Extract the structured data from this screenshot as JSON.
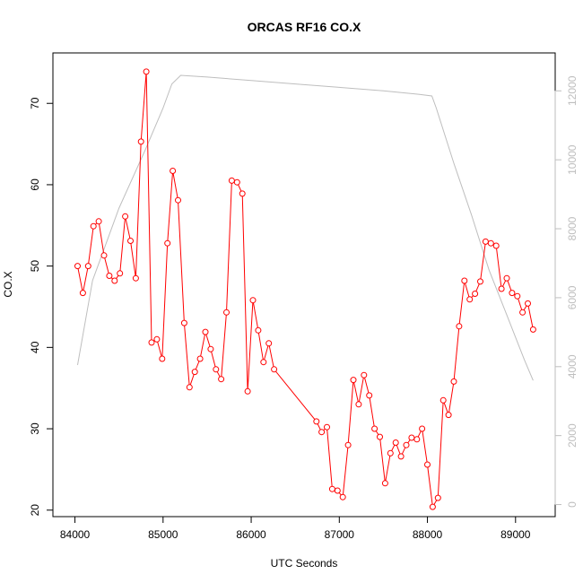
{
  "chart_data": {
    "type": "line",
    "title": "ORCAS RF16 CO.X",
    "xlabel": "UTC Seconds",
    "ylabel": "CO.X",
    "xlim": [
      83750,
      89450
    ],
    "ylim": [
      19.2,
      76.2
    ],
    "y2lim": [
      -350,
      13100
    ],
    "x_ticks": [
      84000,
      85000,
      86000,
      87000,
      88000,
      89000
    ],
    "y_ticks": [
      20,
      30,
      40,
      50,
      60,
      70
    ],
    "y2_ticks": [
      0,
      2000,
      4000,
      6000,
      8000,
      10000,
      12000
    ],
    "colors": {
      "co": "#ff0000",
      "alt": "#bebebe",
      "axis": "#000000",
      "axis2": "#bebebe"
    },
    "series": [
      {
        "axis": "left",
        "points": [
          [
            84030,
            50.0
          ],
          [
            84090,
            46.7
          ],
          [
            84150,
            50.0
          ],
          [
            84210,
            54.9
          ],
          [
            84270,
            55.5
          ],
          [
            84330,
            51.3
          ],
          [
            84390,
            48.8
          ],
          [
            84450,
            48.2
          ],
          [
            84510,
            49.1
          ],
          [
            84570,
            56.1
          ],
          [
            84630,
            53.1
          ],
          [
            84690,
            48.5
          ],
          [
            84750,
            65.3
          ],
          [
            84810,
            73.9
          ],
          [
            84870,
            40.6
          ],
          [
            84930,
            41.0
          ],
          [
            84990,
            38.6
          ],
          [
            85050,
            52.8
          ],
          [
            85110,
            61.7
          ],
          [
            85170,
            58.1
          ],
          [
            85240,
            43.0
          ],
          [
            85300,
            35.1
          ],
          [
            85360,
            37.0
          ],
          [
            85420,
            38.6
          ],
          [
            85480,
            41.9
          ],
          [
            85540,
            39.8
          ],
          [
            85600,
            37.3
          ],
          [
            85660,
            36.1
          ],
          [
            85720,
            44.3
          ],
          [
            85780,
            60.5
          ],
          [
            85840,
            60.3
          ],
          [
            85900,
            58.9
          ],
          [
            85960,
            34.6
          ],
          [
            86020,
            45.8
          ],
          [
            86080,
            42.1
          ],
          [
            86140,
            38.2
          ],
          [
            86200,
            40.5
          ],
          [
            86260,
            37.3
          ],
          [
            86740,
            30.9
          ],
          [
            86800,
            29.6
          ],
          [
            86860,
            30.2
          ],
          [
            86920,
            22.6
          ],
          [
            86980,
            22.4
          ],
          [
            87040,
            21.6
          ],
          [
            87100,
            28.0
          ],
          [
            87160,
            36.0
          ],
          [
            87220,
            33.0
          ],
          [
            87280,
            36.6
          ],
          [
            87340,
            34.1
          ],
          [
            87400,
            30.0
          ],
          [
            87460,
            29.0
          ],
          [
            87520,
            23.3
          ],
          [
            87580,
            27.0
          ],
          [
            87640,
            28.3
          ],
          [
            87700,
            26.6
          ],
          [
            87760,
            28.0
          ],
          [
            87820,
            28.9
          ],
          [
            87880,
            28.7
          ],
          [
            87940,
            30.0
          ],
          [
            88000,
            25.6
          ],
          [
            88060,
            20.4
          ],
          [
            88120,
            21.5
          ],
          [
            88180,
            33.5
          ],
          [
            88240,
            31.7
          ],
          [
            88300,
            35.8
          ],
          [
            88360,
            42.6
          ],
          [
            88420,
            48.2
          ],
          [
            88480,
            45.9
          ],
          [
            88540,
            46.6
          ],
          [
            88600,
            48.1
          ],
          [
            88660,
            53.0
          ],
          [
            88720,
            52.8
          ],
          [
            88780,
            52.5
          ],
          [
            88840,
            47.2
          ],
          [
            88900,
            48.5
          ],
          [
            88960,
            46.7
          ],
          [
            89020,
            46.3
          ],
          [
            89080,
            44.3
          ],
          [
            89140,
            45.4
          ],
          [
            89200,
            42.2
          ]
        ]
      },
      {
        "axis": "right",
        "points": [
          [
            84030,
            4050
          ],
          [
            84200,
            6500
          ],
          [
            84500,
            8600
          ],
          [
            84800,
            10300
          ],
          [
            85000,
            11500
          ],
          [
            85100,
            12200
          ],
          [
            85200,
            12450
          ],
          [
            85500,
            12400
          ],
          [
            86000,
            12300
          ],
          [
            86500,
            12200
          ],
          [
            87000,
            12100
          ],
          [
            87500,
            12000
          ],
          [
            87900,
            11900
          ],
          [
            88050,
            11850
          ],
          [
            88100,
            11500
          ],
          [
            88300,
            9900
          ],
          [
            88500,
            8400
          ],
          [
            88700,
            6800
          ],
          [
            88900,
            5500
          ],
          [
            89100,
            4200
          ],
          [
            89200,
            3600
          ]
        ]
      }
    ]
  }
}
